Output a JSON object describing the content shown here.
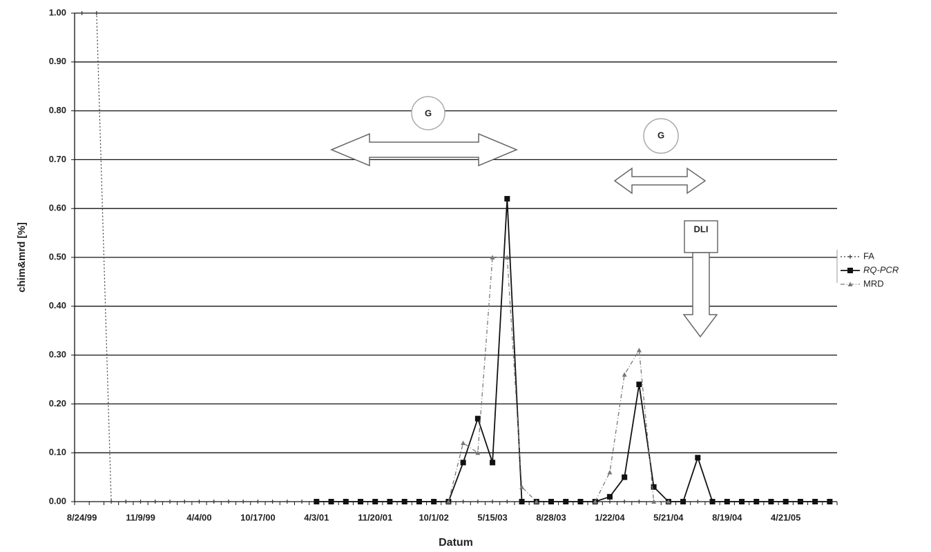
{
  "chart_data": {
    "type": "line",
    "x_label": "Datum",
    "y_label": "chim&mrd [%]",
    "categories": [
      "8/24/99",
      null,
      null,
      null,
      "11/9/99",
      null,
      null,
      null,
      "4/4/00",
      null,
      null,
      null,
      "10/17/00",
      null,
      null,
      null,
      "4/3/01",
      null,
      null,
      null,
      "11/20/01",
      null,
      null,
      null,
      "10/1/02",
      null,
      null,
      null,
      "5/15/03",
      null,
      null,
      null,
      "8/28/03",
      null,
      null,
      null,
      "1/22/04",
      null,
      null,
      null,
      "5/21/04",
      null,
      null,
      null,
      "8/19/04",
      null,
      null,
      null,
      "4/21/05",
      null,
      null,
      null
    ],
    "series": [
      {
        "name": "FA",
        "color": "#333333",
        "values": [
          1,
          1,
          0,
          0,
          0,
          0,
          0,
          0,
          0,
          0,
          0,
          0,
          0,
          0,
          0,
          0,
          0,
          0,
          0,
          0,
          0,
          0,
          0,
          0,
          0,
          0,
          0,
          0,
          0,
          0,
          0,
          0,
          0,
          0,
          0,
          0,
          0,
          0,
          0,
          0,
          0,
          0,
          0,
          0,
          0,
          0,
          0,
          0,
          0,
          0,
          0,
          0
        ]
      },
      {
        "name": "RQ-PCR",
        "color": "#111111",
        "values": [
          null,
          null,
          null,
          null,
          null,
          null,
          null,
          null,
          null,
          null,
          null,
          null,
          null,
          null,
          null,
          null,
          0,
          0,
          0,
          0,
          0,
          0,
          0,
          0,
          0,
          0,
          0.08,
          0.17,
          0.08,
          0.62,
          0,
          0,
          0,
          0,
          0,
          0,
          0.01,
          0.05,
          0.24,
          0.03,
          0,
          0,
          0.09,
          0,
          0,
          0,
          0,
          0,
          0,
          0,
          0,
          0
        ]
      },
      {
        "name": "MRD",
        "color": "#777777",
        "values": [
          null,
          null,
          null,
          null,
          null,
          null,
          null,
          null,
          null,
          null,
          null,
          null,
          null,
          null,
          null,
          null,
          null,
          null,
          null,
          null,
          null,
          null,
          null,
          null,
          null,
          0,
          0.12,
          0.1,
          0.5,
          0.5,
          0.03,
          0,
          null,
          null,
          null,
          0,
          0.06,
          0.26,
          0.31,
          0,
          0,
          null,
          null,
          null,
          null,
          null,
          null,
          null,
          null,
          null,
          null,
          null
        ]
      }
    ],
    "ylim": [
      0,
      1
    ],
    "yticks": [
      {
        "value": 0,
        "label": "0.00"
      },
      {
        "value": 0.1,
        "label": "0.10"
      },
      {
        "value": 0.2,
        "label": "0.20"
      },
      {
        "value": 0.3,
        "label": "0.30"
      },
      {
        "value": 0.4,
        "label": "0.40"
      },
      {
        "value": 0.5,
        "label": "0.50"
      },
      {
        "value": 0.6,
        "label": "0.60"
      },
      {
        "value": 0.7,
        "label": "0.70"
      },
      {
        "value": 0.8,
        "label": "0.80"
      },
      {
        "value": 0.9,
        "label": "0.90"
      },
      {
        "value": 1,
        "label": "1.00"
      }
    ],
    "grid": true,
    "legend": "right",
    "annotations": [
      "G",
      "G",
      "DLI"
    ]
  }
}
